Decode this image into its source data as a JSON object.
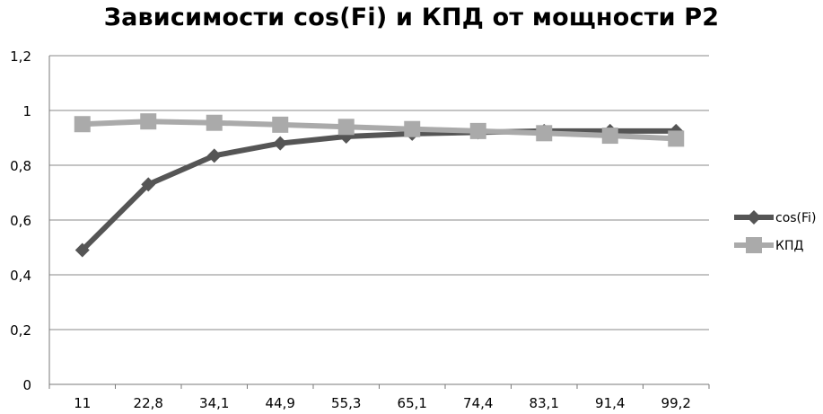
{
  "chart_data": {
    "type": "line",
    "title": "Зависимости cos(Fi) и КПД от мощности Р2",
    "xlabel": "",
    "ylabel": "",
    "categories": [
      "11",
      "22,8",
      "34,1",
      "44,9",
      "55,3",
      "65,1",
      "74,4",
      "83,1",
      "91,4",
      "99,2"
    ],
    "ylim": [
      0,
      1.2
    ],
    "yticks": [
      "0",
      "0,2",
      "0,4",
      "0,6",
      "0,8",
      "1",
      "1,2"
    ],
    "ytick_values": [
      0,
      0.2,
      0.4,
      0.6,
      0.8,
      1.0,
      1.2
    ],
    "grid": true,
    "legend_position": "right",
    "series": [
      {
        "name": "cos(Fi)",
        "values": [
          0.49,
          0.73,
          0.835,
          0.88,
          0.905,
          0.915,
          0.92,
          0.925,
          0.925,
          0.925
        ],
        "color": "#555555",
        "marker": "diamond"
      },
      {
        "name": "КПД",
        "values": [
          0.95,
          0.96,
          0.955,
          0.948,
          0.94,
          0.932,
          0.925,
          0.917,
          0.908,
          0.897
        ],
        "color": "#aaaaaa",
        "marker": "square"
      }
    ]
  }
}
